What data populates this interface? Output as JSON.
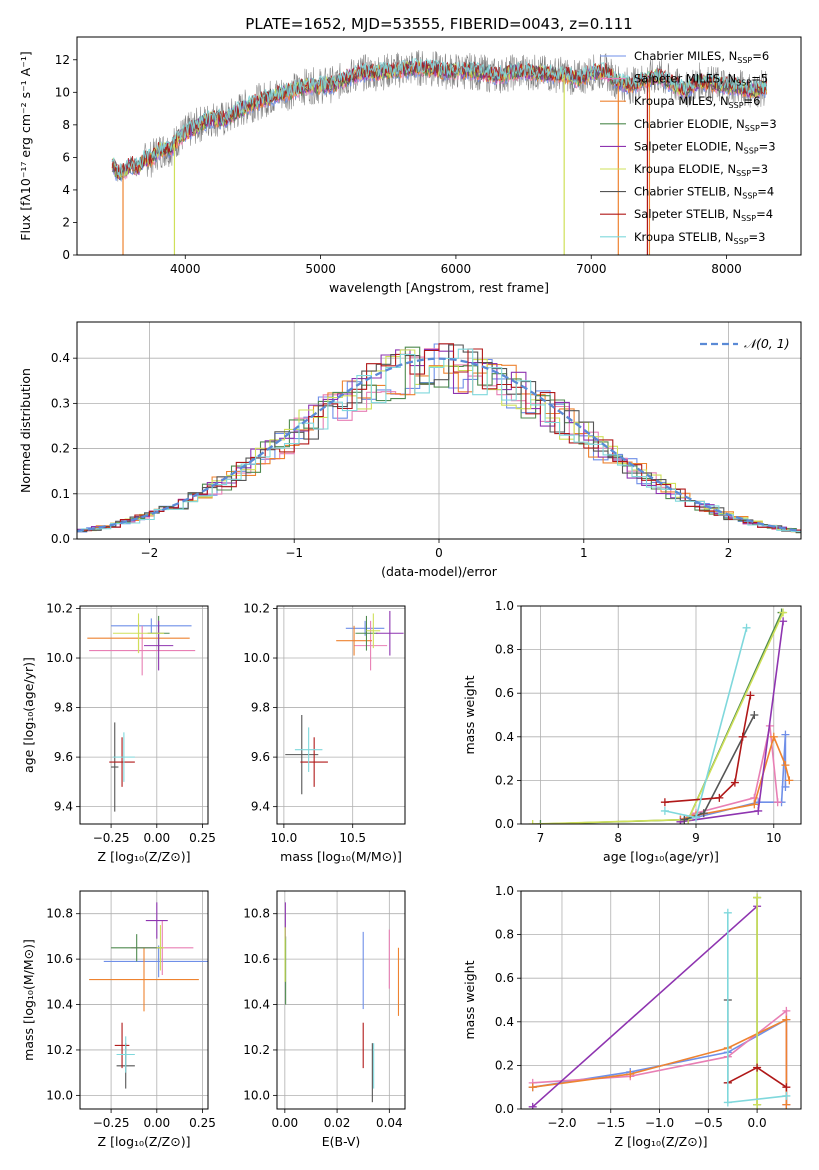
{
  "page": {
    "title": "PLATE=1652, MJD=53555, FIBERID=0043, z=0.111"
  },
  "colors": {
    "Chabrier MILES": "#6f8fe8",
    "Salpeter MILES": "#e87fb4",
    "Kroupa MILES": "#ee8330",
    "Chabrier ELODIE": "#4f8a4f",
    "Salpeter ELODIE": "#8e34b0",
    "Kroupa ELODIE": "#cfe05a",
    "Chabrier STELIB": "#555555",
    "Salpeter STELIB": "#b01818",
    "Kroupa STELIB": "#7fd8dc",
    "spectrum": "#808080",
    "gaussian": "#5a8ad6",
    "grid": "#b0b0b0"
  },
  "chart_data": [
    {
      "id": "spectrum",
      "type": "line",
      "title": "PLATE=1652, MJD=53555, FIBERID=0043, z=0.111",
      "xlabel": "wavelength [Angstrom, rest frame]",
      "ylabel": "Flux [fλ10⁻¹⁷ erg cm⁻² s⁻¹ A⁻¹]",
      "xlim": [
        3200,
        8550
      ],
      "ylim": [
        0,
        13.4
      ],
      "xticks": [
        4000,
        5000,
        6000,
        7000,
        8000
      ],
      "yticks": [
        0,
        2,
        4,
        6,
        8,
        10,
        12
      ],
      "grid": false,
      "legend_position": "right",
      "legend": [
        {
          "label": "Chabrier MILES, N_SSP=6",
          "text": "Chabrier MILES, N",
          "sub": "SSP",
          "tail": "=6",
          "key": "Chabrier MILES"
        },
        {
          "label": "Salpeter MILES, N_SSP=5",
          "text": "Salpeter MILES, N",
          "sub": "SSP",
          "tail": "=5",
          "key": "Salpeter MILES"
        },
        {
          "label": "Kroupa MILES, N_SSP=6",
          "text": "Kroupa MILES, N",
          "sub": "SSP",
          "tail": "=6",
          "key": "Kroupa MILES"
        },
        {
          "label": "Chabrier ELODIE, N_SSP=3",
          "text": "Chabrier ELODIE, N",
          "sub": "SSP",
          "tail": "=3",
          "key": "Chabrier ELODIE"
        },
        {
          "label": "Salpeter ELODIE, N_SSP=3",
          "text": "Salpeter ELODIE, N",
          "sub": "SSP",
          "tail": "=3",
          "key": "Salpeter ELODIE"
        },
        {
          "label": "Kroupa ELODIE, N_SSP=3",
          "text": "Kroupa ELODIE, N",
          "sub": "SSP",
          "tail": "=3",
          "key": "Kroupa ELODIE"
        },
        {
          "label": "Chabrier STELIB, N_SSP=4",
          "text": "Chabrier STELIB, N",
          "sub": "SSP",
          "tail": "=4",
          "key": "Chabrier STELIB"
        },
        {
          "label": "Salpeter STELIB, N_SSP=4",
          "text": "Salpeter STELIB, N",
          "sub": "SSP",
          "tail": "=4",
          "key": "Salpeter STELIB"
        },
        {
          "label": "Kroupa STELIB, N_SSP=3",
          "text": "Kroupa STELIB, N",
          "sub": "SSP",
          "tail": "=3",
          "key": "Kroupa STELIB"
        }
      ],
      "spectrum_points": [
        [
          3460,
          5.6
        ],
        [
          3500,
          5.0
        ],
        [
          3550,
          5.1
        ],
        [
          3600,
          5.6
        ],
        [
          3650,
          5.3
        ],
        [
          3700,
          5.9
        ],
        [
          3750,
          5.9
        ],
        [
          3800,
          6.4
        ],
        [
          3850,
          6.5
        ],
        [
          3900,
          6.6
        ],
        [
          3950,
          7.2
        ],
        [
          4000,
          7.5
        ],
        [
          4100,
          8.0
        ],
        [
          4200,
          8.4
        ],
        [
          4300,
          8.3
        ],
        [
          4400,
          8.9
        ],
        [
          4500,
          9.3
        ],
        [
          4600,
          9.6
        ],
        [
          4700,
          9.9
        ],
        [
          4800,
          10.1
        ],
        [
          4900,
          10.4
        ],
        [
          5000,
          10.4
        ],
        [
          5100,
          10.5
        ],
        [
          5200,
          10.9
        ],
        [
          5300,
          11.2
        ],
        [
          5400,
          11.2
        ],
        [
          5500,
          11.3
        ],
        [
          5600,
          11.4
        ],
        [
          5700,
          11.5
        ],
        [
          5800,
          11.5
        ],
        [
          5900,
          11.3
        ],
        [
          6000,
          11.3
        ],
        [
          6100,
          11.3
        ],
        [
          6200,
          11.2
        ],
        [
          6300,
          11.0
        ],
        [
          6400,
          11.2
        ],
        [
          6500,
          11.3
        ],
        [
          6600,
          11.2
        ],
        [
          6700,
          11.1
        ],
        [
          6800,
          11.1
        ],
        [
          6900,
          10.8
        ],
        [
          7000,
          11.2
        ],
        [
          7100,
          11.3
        ],
        [
          7200,
          10.6
        ],
        [
          7300,
          10.4
        ],
        [
          7400,
          10.8
        ],
        [
          7500,
          11.0
        ],
        [
          7600,
          10.5
        ],
        [
          7700,
          10.1
        ],
        [
          7800,
          10.7
        ],
        [
          7900,
          10.5
        ],
        [
          8000,
          10.4
        ],
        [
          8100,
          10.3
        ],
        [
          8200,
          10.1
        ],
        [
          8300,
          10.3
        ]
      ]
    },
    {
      "id": "residuals",
      "type": "bar",
      "xlabel": "(data-model)/error",
      "ylabel": "Normed distribution",
      "xlim": [
        -2.5,
        2.5
      ],
      "ylim": [
        0,
        0.48
      ],
      "xticks": [
        -2,
        -1,
        0,
        1,
        2
      ],
      "yticks": [
        0.0,
        0.1,
        0.2,
        0.3,
        0.4
      ],
      "grid": true,
      "legend": [
        {
          "label": "𝒩(0, 1)"
        }
      ],
      "legend_position": "top-right"
    },
    {
      "id": "age-vs-Z",
      "type": "scatter",
      "xlabel": "Z [log₁₀(Z/Z⊙)]",
      "ylabel": "age  [log₁₀(age/yr)]",
      "xlim": [
        -0.42,
        0.28
      ],
      "ylim": [
        9.33,
        10.21
      ],
      "xticks": [
        -0.25,
        0.0,
        0.25
      ],
      "yticks": [
        9.4,
        9.6,
        9.8,
        10.0,
        10.2
      ],
      "grid": true,
      "points": [
        {
          "series": "Chabrier MILES",
          "x": -0.03,
          "y": 10.13,
          "xerr": 0.22,
          "yerr": 0.03
        },
        {
          "series": "Salpeter MILES",
          "x": -0.08,
          "y": 10.03,
          "xerr": 0.29,
          "yerr": 0.1
        },
        {
          "series": "Kroupa MILES",
          "x": -0.1,
          "y": 10.08,
          "xerr": 0.28,
          "yerr": 0.06
        },
        {
          "series": "Chabrier ELODIE",
          "x": 0.01,
          "y": 10.1,
          "xerr": 0.06,
          "yerr": 0.07
        },
        {
          "series": "Salpeter ELODIE",
          "x": 0.01,
          "y": 10.05,
          "xerr": 0.08,
          "yerr": 0.1
        },
        {
          "series": "Kroupa ELODIE",
          "x": -0.1,
          "y": 10.1,
          "xerr": 0.14,
          "yerr": 0.08
        },
        {
          "series": "Chabrier STELIB",
          "x": -0.23,
          "y": 9.56,
          "xerr": 0.02,
          "yerr": 0.18
        },
        {
          "series": "Salpeter STELIB",
          "x": -0.19,
          "y": 9.58,
          "xerr": 0.07,
          "yerr": 0.1
        },
        {
          "series": "Kroupa STELIB",
          "x": -0.18,
          "y": 9.6,
          "xerr": 0.06,
          "yerr": 0.1
        }
      ]
    },
    {
      "id": "age-vs-mass",
      "type": "scatter",
      "xlabel": "mass [log₁₀(M/M⊙)]",
      "ylabel": "",
      "xlim": [
        9.95,
        10.88
      ],
      "ylim": [
        9.33,
        10.21
      ],
      "xticks": [
        10.0,
        10.5
      ],
      "yticks": [
        9.4,
        9.6,
        9.8,
        10.0,
        10.2
      ],
      "grid": true,
      "points": [
        {
          "series": "Chabrier MILES",
          "x": 10.59,
          "y": 10.12,
          "xerr": 0.14,
          "yerr": 0.03
        },
        {
          "series": "Salpeter MILES",
          "x": 10.63,
          "y": 10.05,
          "xerr": 0.12,
          "yerr": 0.1
        },
        {
          "series": "Kroupa MILES",
          "x": 10.51,
          "y": 10.07,
          "xerr": 0.13,
          "yerr": 0.06
        },
        {
          "series": "Chabrier ELODIE",
          "x": 10.6,
          "y": 10.1,
          "xerr": 0.08,
          "yerr": 0.07
        },
        {
          "series": "Salpeter ELODIE",
          "x": 10.77,
          "y": 10.1,
          "xerr": 0.1,
          "yerr": 0.09
        },
        {
          "series": "Kroupa ELODIE",
          "x": 10.65,
          "y": 10.11,
          "xerr": 0.05,
          "yerr": 0.07
        },
        {
          "series": "Chabrier STELIB",
          "x": 10.13,
          "y": 9.61,
          "xerr": 0.12,
          "yerr": 0.16
        },
        {
          "series": "Salpeter STELIB",
          "x": 10.22,
          "y": 9.58,
          "xerr": 0.1,
          "yerr": 0.1
        },
        {
          "series": "Kroupa STELIB",
          "x": 10.18,
          "y": 9.63,
          "xerr": 0.1,
          "yerr": 0.09
        }
      ]
    },
    {
      "id": "mass-weight-vs-age",
      "type": "line",
      "xlabel": "age  [log₁₀(age/yr)]",
      "ylabel": "mass weight",
      "xlim": [
        6.75,
        10.35
      ],
      "ylim": [
        0,
        1.0
      ],
      "xticks": [
        7,
        8,
        9,
        10
      ],
      "yticks": [
        0.0,
        0.2,
        0.4,
        0.6,
        0.8,
        1.0
      ],
      "grid": true,
      "series": [
        {
          "name": "Chabrier MILES",
          "x": [
            8.8,
            9.0,
            9.8,
            10.1,
            10.15,
            10.15
          ],
          "y": [
            0.02,
            0.03,
            0.1,
            0.1,
            0.41,
            0.17
          ]
        },
        {
          "name": "Salpeter MILES",
          "x": [
            8.8,
            9.0,
            9.75,
            9.95,
            10.05
          ],
          "y": [
            0.02,
            0.05,
            0.12,
            0.45,
            0.1
          ]
        },
        {
          "name": "Kroupa MILES",
          "x": [
            8.8,
            9.0,
            9.75,
            10.0,
            10.15,
            10.2
          ],
          "y": [
            0.02,
            0.04,
            0.09,
            0.4,
            0.27,
            0.2
          ]
        },
        {
          "name": "Chabrier ELODIE",
          "x": [
            7.0,
            8.9,
            10.1
          ],
          "y": [
            0.0,
            0.02,
            0.97
          ]
        },
        {
          "name": "Salpeter ELODIE",
          "x": [
            8.8,
            9.8,
            10.12
          ],
          "y": [
            0.01,
            0.06,
            0.93
          ]
        },
        {
          "name": "Kroupa ELODIE",
          "x": [
            6.9,
            8.9,
            10.12
          ],
          "y": [
            0.0,
            0.02,
            0.97
          ]
        },
        {
          "name": "Chabrier STELIB",
          "x": [
            8.85,
            9.1,
            9.75
          ],
          "y": [
            0.02,
            0.05,
            0.5
          ]
        },
        {
          "name": "Salpeter STELIB",
          "x": [
            8.6,
            9.3,
            9.5,
            9.6,
            9.7
          ],
          "y": [
            0.1,
            0.12,
            0.19,
            0.4,
            0.59
          ]
        },
        {
          "name": "Kroupa STELIB",
          "x": [
            8.6,
            9.0,
            9.65
          ],
          "y": [
            0.06,
            0.03,
            0.9
          ]
        }
      ]
    },
    {
      "id": "mass-vs-Z",
      "type": "scatter",
      "xlabel": "Z [log₁₀(Z/Z⊙)]",
      "ylabel": "mass [log₁₀(M/M⊙)]",
      "xlim": [
        -0.42,
        0.28
      ],
      "ylim": [
        9.94,
        10.9
      ],
      "xticks": [
        -0.25,
        0.0,
        0.25
      ],
      "yticks": [
        10.0,
        10.2,
        10.4,
        10.6,
        10.8
      ],
      "grid": true,
      "points": [
        {
          "series": "Chabrier MILES",
          "x": 0.01,
          "y": 10.59,
          "xerr": 0.3,
          "yerr": 0.07
        },
        {
          "series": "Salpeter MILES",
          "x": 0.03,
          "y": 10.65,
          "xerr": 0.17,
          "yerr": 0.12
        },
        {
          "series": "Kroupa MILES",
          "x": -0.07,
          "y": 10.51,
          "xerr": 0.3,
          "yerr": 0.14
        },
        {
          "series": "Chabrier ELODIE",
          "x": -0.11,
          "y": 10.65,
          "xerr": 0.14,
          "yerr": 0.06
        },
        {
          "series": "Salpeter ELODIE",
          "x": 0.0,
          "y": 10.77,
          "xerr": 0.06,
          "yerr": 0.08
        },
        {
          "series": "Kroupa ELODIE",
          "x": 0.02,
          "y": 10.65,
          "xerr": 0.02,
          "yerr": 0.1
        },
        {
          "series": "Chabrier STELIB",
          "x": -0.17,
          "y": 10.13,
          "xerr": 0.05,
          "yerr": 0.1
        },
        {
          "series": "Salpeter STELIB",
          "x": -0.19,
          "y": 10.22,
          "xerr": 0.04,
          "yerr": 0.1
        },
        {
          "series": "Kroupa STELIB",
          "x": -0.17,
          "y": 10.18,
          "xerr": 0.05,
          "yerr": 0.08
        }
      ]
    },
    {
      "id": "mass-vs-EBV",
      "type": "scatter",
      "xlabel": "E(B-V)",
      "ylabel": "",
      "xlim": [
        -0.003,
        0.046
      ],
      "ylim": [
        9.94,
        10.9
      ],
      "xticks": [
        0.0,
        0.02,
        0.04
      ],
      "yticks": [
        10.0,
        10.2,
        10.4,
        10.6,
        10.8
      ],
      "grid": true,
      "points": [
        {
          "series": "Chabrier MILES",
          "x": 0.03,
          "y": 10.55,
          "yerr": 0.17
        },
        {
          "series": "Salpeter MILES",
          "x": 0.04,
          "y": 10.6,
          "yerr": 0.13
        },
        {
          "series": "Kroupa MILES",
          "x": 0.0435,
          "y": 10.5,
          "yerr": 0.15
        },
        {
          "series": "Chabrier ELODIE",
          "x": 0.0003,
          "y": 10.55,
          "yerr": 0.15
        },
        {
          "series": "Salpeter ELODIE",
          "x": 0.0002,
          "y": 10.77,
          "yerr": 0.08
        },
        {
          "series": "Kroupa ELODIE",
          "x": 0.0001,
          "y": 10.62,
          "yerr": 0.12
        },
        {
          "series": "Chabrier STELIB",
          "x": 0.0335,
          "y": 10.1,
          "yerr": 0.13
        },
        {
          "series": "Salpeter STELIB",
          "x": 0.03,
          "y": 10.22,
          "yerr": 0.1
        },
        {
          "series": "Kroupa STELIB",
          "x": 0.034,
          "y": 10.13,
          "yerr": 0.1
        }
      ]
    },
    {
      "id": "mass-weight-vs-Z",
      "type": "line",
      "xlabel": "Z [log₁₀(Z/Z⊙)]",
      "ylabel": "mass weight",
      "xlim": [
        -2.42,
        0.45
      ],
      "ylim": [
        0,
        1.0
      ],
      "xticks": [
        -2.0,
        -1.5,
        -1.0,
        -0.5,
        0.0
      ],
      "yticks": [
        0.0,
        0.2,
        0.4,
        0.6,
        0.8,
        1.0
      ],
      "grid": true,
      "series": [
        {
          "name": "Chabrier MILES",
          "x": [
            -2.3,
            -1.3,
            -0.3,
            0.3,
            0.3
          ],
          "y": [
            0.1,
            0.17,
            0.26,
            0.41,
            0.02
          ]
        },
        {
          "name": "Salpeter MILES",
          "x": [
            -2.3,
            -1.3,
            -0.3,
            0.3,
            0.3
          ],
          "y": [
            0.12,
            0.15,
            0.24,
            0.45,
            0.02
          ]
        },
        {
          "name": "Kroupa MILES",
          "x": [
            -2.3,
            -1.3,
            -0.3,
            0.3,
            0.3
          ],
          "y": [
            0.1,
            0.16,
            0.28,
            0.41,
            0.02
          ]
        },
        {
          "name": "Chabrier ELODIE",
          "x": [
            0.0,
            0.0
          ],
          "y": [
            0.97,
            0.02
          ]
        },
        {
          "name": "Salpeter ELODIE",
          "x": [
            -2.3,
            0.0
          ],
          "y": [
            0.01,
            0.93
          ]
        },
        {
          "name": "Kroupa ELODIE",
          "x": [
            0.0,
            0.0
          ],
          "y": [
            0.97,
            0.02
          ]
        },
        {
          "name": "Chabrier STELIB",
          "x": [
            -0.3,
            -0.3
          ],
          "y": [
            0.5,
            0.12
          ]
        },
        {
          "name": "Salpeter STELIB",
          "x": [
            -0.3,
            0.0,
            0.3
          ],
          "y": [
            0.12,
            0.19,
            0.1
          ]
        },
        {
          "name": "Kroupa STELIB",
          "x": [
            -0.3,
            -0.3,
            0.3
          ],
          "y": [
            0.9,
            0.03,
            0.06
          ]
        }
      ]
    }
  ]
}
